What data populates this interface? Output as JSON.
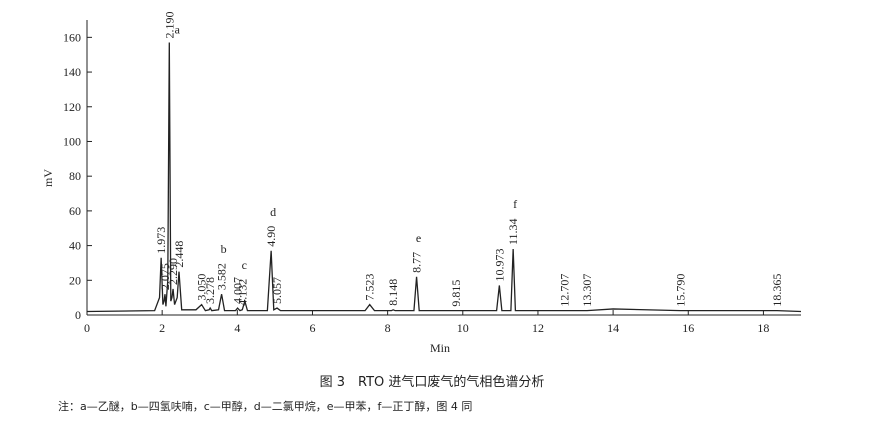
{
  "chart_data": {
    "type": "line",
    "xlabel": "Min",
    "ylabel": "mV",
    "caption": "图 3　RTO 进气口废气的气相色谱分析",
    "note": "注：a—乙醚，b—四氢呋喃，c—甲醇，d—二氯甲烷，e—甲苯，f—正丁醇，图 4 同",
    "color": "#222222",
    "xlim": [
      0,
      19
    ],
    "ylim": [
      0,
      170
    ],
    "xticks": [
      0,
      2,
      4,
      6,
      8,
      10,
      12,
      14,
      16,
      18
    ],
    "yticks": [
      0,
      20,
      40,
      60,
      80,
      100,
      120,
      140,
      160
    ],
    "x": [
      0,
      1.8,
      1.93,
      1.973,
      2.02,
      2.05,
      2.075,
      2.1,
      2.15,
      2.19,
      2.23,
      2.26,
      2.29,
      2.33,
      2.4,
      2.448,
      2.52,
      2.9,
      3.05,
      3.15,
      3.25,
      3.278,
      3.32,
      3.5,
      3.582,
      3.66,
      3.95,
      4.007,
      4.07,
      4.132,
      4.2,
      4.27,
      4.8,
      4.9,
      4.97,
      5.057,
      5.15,
      7.4,
      7.523,
      7.65,
      8.1,
      8.148,
      8.2,
      8.7,
      8.77,
      8.84,
      9.815,
      10.9,
      10.973,
      11.04,
      11.28,
      11.34,
      11.4,
      12.707,
      13.307,
      14.0,
      15.79,
      18.365,
      19
    ],
    "values": [
      2,
      2.5,
      10,
      33,
      6,
      8,
      12,
      5,
      20,
      157,
      8,
      10,
      15,
      6,
      10,
      25,
      3,
      3,
      6,
      2.5,
      3,
      4,
      2.5,
      3,
      12,
      2.5,
      2.5,
      4,
      2.5,
      3,
      8,
      2.5,
      2.5,
      37,
      3,
      4,
      2.5,
      2.5,
      6,
      2.5,
      2.5,
      3,
      2.5,
      2.5,
      22,
      2.5,
      2.5,
      2.5,
      17,
      2.5,
      2.5,
      38,
      2.5,
      2.5,
      2.5,
      3.5,
      2.5,
      2.5,
      2
    ],
    "annotations": [
      {
        "text": "1.973",
        "x": 1.973
      },
      {
        "text": "2.075",
        "x": 2.075
      },
      {
        "text": "2.190",
        "x": 2.19,
        "tag": "a"
      },
      {
        "text": "2.290",
        "x": 2.29
      },
      {
        "text": "2.448",
        "x": 2.448
      },
      {
        "text": "3.050",
        "x": 3.05
      },
      {
        "text": "3.278",
        "x": 3.278
      },
      {
        "text": "3.582",
        "x": 3.582,
        "tag": "b"
      },
      {
        "text": "4.007",
        "x": 4.007
      },
      {
        "text": "4.132",
        "x": 4.132,
        "tag": "c"
      },
      {
        "text": "4.90",
        "x": 4.9,
        "tag": "d"
      },
      {
        "text": "5.057",
        "x": 5.057
      },
      {
        "text": "7.523",
        "x": 7.523
      },
      {
        "text": "8.148",
        "x": 8.148
      },
      {
        "text": "8.77",
        "x": 8.77,
        "tag": "e"
      },
      {
        "text": "9.815",
        "x": 9.815
      },
      {
        "text": "10.973",
        "x": 10.973
      },
      {
        "text": "11.34",
        "x": 11.34,
        "tag": "f"
      },
      {
        "text": "12.707",
        "x": 12.707
      },
      {
        "text": "13.307",
        "x": 13.307
      },
      {
        "text": "15.790",
        "x": 15.79
      },
      {
        "text": "18.365",
        "x": 18.365
      }
    ]
  }
}
